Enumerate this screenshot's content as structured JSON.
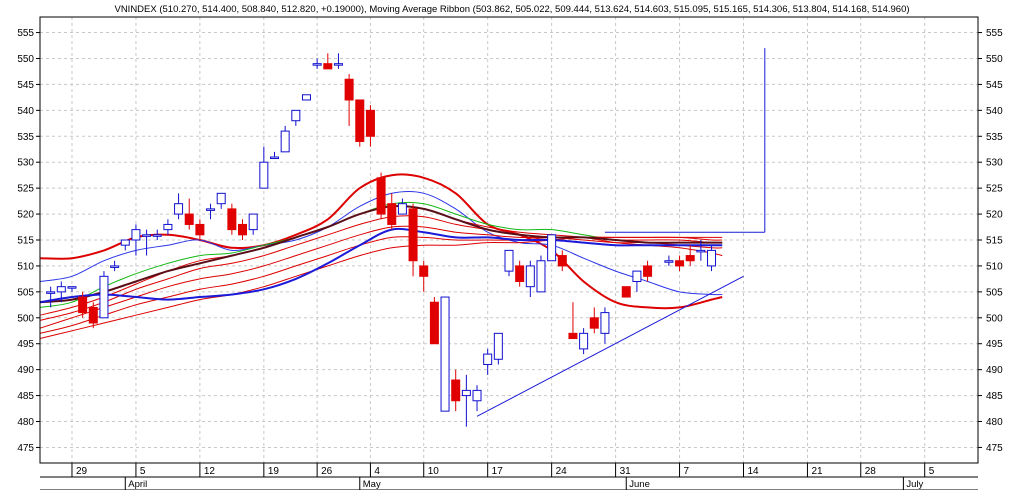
{
  "chart_data": {
    "type": "candlestick",
    "title": "VNINDEX (510.270, 514.400, 508.840, 512.820, +0.19000), Moving Average Ribbon (503.862, 505.022, 509.444, 513.624, 514.603, 515.095, 515.165, 514.306, 513.804, 514.168, 514.960)",
    "ylim": [
      472,
      558
    ],
    "yticks": [
      475,
      480,
      485,
      490,
      495,
      500,
      505,
      510,
      515,
      520,
      525,
      530,
      535,
      540,
      545,
      550,
      555
    ],
    "xlim": [
      -3,
      85
    ],
    "xticks": [
      {
        "label": "29",
        "x": 0
      },
      {
        "label": "5",
        "x": 6
      },
      {
        "label": "12",
        "x": 12
      },
      {
        "label": "19",
        "x": 18
      },
      {
        "label": "26",
        "x": 23
      },
      {
        "label": "4",
        "x": 28
      },
      {
        "label": "10",
        "x": 33
      },
      {
        "label": "17",
        "x": 39
      },
      {
        "label": "24",
        "x": 45
      },
      {
        "label": "31",
        "x": 51
      },
      {
        "label": "7",
        "x": 57
      },
      {
        "label": "14",
        "x": 63
      },
      {
        "label": "21",
        "x": 69
      },
      {
        "label": "28",
        "x": 74
      },
      {
        "label": "5",
        "x": 80
      }
    ],
    "months": [
      {
        "label": "April",
        "x": 5
      },
      {
        "label": "May",
        "x": 27
      },
      {
        "label": "June",
        "x": 52
      },
      {
        "label": "July",
        "x": 78
      }
    ],
    "candles": [
      {
        "x": -2,
        "open": 505,
        "high": 506,
        "low": 502,
        "close": 505
      },
      {
        "x": -1,
        "open": 505,
        "high": 507,
        "low": 503,
        "close": 506
      },
      {
        "x": 0,
        "open": 506,
        "high": 506,
        "low": 505,
        "close": 506
      },
      {
        "x": 1,
        "open": 504,
        "high": 505,
        "low": 500,
        "close": 501
      },
      {
        "x": 2,
        "open": 502,
        "high": 503,
        "low": 498,
        "close": 499
      },
      {
        "x": 3,
        "open": 500,
        "high": 509,
        "low": 500,
        "close": 508
      },
      {
        "x": 4,
        "open": 510,
        "high": 511,
        "low": 509,
        "close": 510
      },
      {
        "x": 5,
        "open": 514,
        "high": 515,
        "low": 513,
        "close": 515
      },
      {
        "x": 6,
        "open": 515,
        "high": 518,
        "low": 512,
        "close": 517
      },
      {
        "x": 7,
        "open": 516,
        "high": 517,
        "low": 512,
        "close": 516
      },
      {
        "x": 8,
        "open": 516,
        "high": 517,
        "low": 515,
        "close": 516
      },
      {
        "x": 9,
        "open": 517,
        "high": 519,
        "low": 516,
        "close": 518
      },
      {
        "x": 10,
        "open": 520,
        "high": 524,
        "low": 519,
        "close": 522
      },
      {
        "x": 11,
        "open": 520,
        "high": 523,
        "low": 517,
        "close": 518
      },
      {
        "x": 12,
        "open": 518,
        "high": 519,
        "low": 515,
        "close": 516
      },
      {
        "x": 13,
        "open": 521,
        "high": 522,
        "low": 519,
        "close": 521
      },
      {
        "x": 14,
        "open": 522,
        "high": 524,
        "low": 521,
        "close": 524
      },
      {
        "x": 15,
        "open": 521,
        "high": 522,
        "low": 516,
        "close": 517
      },
      {
        "x": 16,
        "open": 518,
        "high": 519,
        "low": 515,
        "close": 516
      },
      {
        "x": 17,
        "open": 517,
        "high": 520,
        "low": 516,
        "close": 520
      },
      {
        "x": 18,
        "open": 525,
        "high": 533,
        "low": 525,
        "close": 530
      },
      {
        "x": 19,
        "open": 531,
        "high": 532,
        "low": 531,
        "close": 531
      },
      {
        "x": 20,
        "open": 532,
        "high": 537,
        "low": 532,
        "close": 536
      },
      {
        "x": 21,
        "open": 538,
        "high": 540,
        "low": 537,
        "close": 540
      },
      {
        "x": 22,
        "open": 542,
        "high": 543,
        "low": 542,
        "close": 543
      },
      {
        "x": 23,
        "open": 549,
        "high": 550,
        "low": 548,
        "close": 549
      },
      {
        "x": 24,
        "open": 549,
        "high": 551,
        "low": 548,
        "close": 548
      },
      {
        "x": 25,
        "open": 549,
        "high": 551,
        "low": 548,
        "close": 549
      },
      {
        "x": 26,
        "open": 546,
        "high": 547,
        "low": 537,
        "close": 542
      },
      {
        "x": 27,
        "open": 542,
        "high": 542,
        "low": 533,
        "close": 534
      },
      {
        "x": 28,
        "open": 540,
        "high": 541,
        "low": 533,
        "close": 535
      },
      {
        "x": 29,
        "open": 527,
        "high": 528,
        "low": 519,
        "close": 520
      },
      {
        "x": 30,
        "open": 522,
        "high": 524,
        "low": 517,
        "close": 518
      },
      {
        "x": 31,
        "open": 520,
        "high": 523,
        "low": 520,
        "close": 522
      },
      {
        "x": 32,
        "open": 521,
        "high": 522,
        "low": 508,
        "close": 511
      },
      {
        "x": 33,
        "open": 510,
        "high": 511,
        "low": 505,
        "close": 508
      },
      {
        "x": 34,
        "open": 503,
        "high": 504,
        "low": 495,
        "close": 495
      },
      {
        "x": 35,
        "open": 482,
        "high": 504,
        "low": 482,
        "close": 504
      },
      {
        "x": 36,
        "open": 488,
        "high": 490,
        "low": 482,
        "close": 484
      },
      {
        "x": 37,
        "open": 485,
        "high": 489,
        "low": 479,
        "close": 486
      },
      {
        "x": 38,
        "open": 484,
        "high": 487,
        "low": 482,
        "close": 486
      },
      {
        "x": 39,
        "open": 491,
        "high": 494,
        "low": 489,
        "close": 493
      },
      {
        "x": 40,
        "open": 492,
        "high": 497,
        "low": 491,
        "close": 497
      },
      {
        "x": 41,
        "open": 509,
        "high": 513,
        "low": 508,
        "close": 513
      },
      {
        "x": 42,
        "open": 510,
        "high": 511,
        "low": 506,
        "close": 507
      },
      {
        "x": 43,
        "open": 506,
        "high": 511,
        "low": 504,
        "close": 510
      },
      {
        "x": 44,
        "open": 505,
        "high": 512,
        "low": 505,
        "close": 511
      },
      {
        "x": 45,
        "open": 511,
        "high": 516,
        "low": 511,
        "close": 516
      },
      {
        "x": 46,
        "open": 512,
        "high": 513,
        "low": 509,
        "close": 510
      },
      {
        "x": 47,
        "open": 497,
        "high": 503,
        "low": 496,
        "close": 496
      },
      {
        "x": 48,
        "open": 494,
        "high": 498,
        "low": 493,
        "close": 497
      },
      {
        "x": 49,
        "open": 500,
        "high": 502,
        "low": 497,
        "close": 498
      },
      {
        "x": 50,
        "open": 497,
        "high": 502,
        "low": 495,
        "close": 501
      },
      {
        "x": 52,
        "open": 506,
        "high": 506,
        "low": 504,
        "close": 504
      },
      {
        "x": 53,
        "open": 507,
        "high": 509,
        "low": 505,
        "close": 509
      },
      {
        "x": 54,
        "open": 510,
        "high": 511,
        "low": 507,
        "close": 508
      },
      {
        "x": 56,
        "open": 511,
        "high": 512,
        "low": 510,
        "close": 511
      },
      {
        "x": 57,
        "open": 511,
        "high": 512,
        "low": 509,
        "close": 510
      },
      {
        "x": 58,
        "open": 512,
        "high": 514,
        "low": 510,
        "close": 511
      },
      {
        "x": 59,
        "open": 513,
        "high": 515,
        "low": 511,
        "close": 513
      },
      {
        "x": 60,
        "open": 510,
        "high": 514,
        "low": 509,
        "close": 513
      }
    ],
    "ribbon": {
      "x": [
        -3,
        0,
        3,
        6,
        9,
        12,
        15,
        18,
        21,
        24,
        27,
        30,
        33,
        36,
        39,
        42,
        45,
        48,
        51,
        54,
        57,
        60,
        61
      ],
      "series": [
        {
          "name": "MA fast",
          "color": "#dd0000",
          "width": 2,
          "values": [
            511.5,
            511.5,
            513,
            515.5,
            516,
            515,
            513.5,
            514,
            516,
            519,
            525,
            527.5,
            527,
            524,
            518,
            516,
            513,
            507,
            503,
            502,
            502,
            503.5,
            504
          ]
        },
        {
          "name": "MA blue",
          "color": "#2b36e8",
          "width": 1,
          "values": [
            507,
            508,
            511,
            513,
            514,
            515,
            513,
            514,
            515,
            517.5,
            521.5,
            524,
            524,
            521,
            516.5,
            514.5,
            514,
            511.5,
            509,
            507,
            505,
            504.5,
            504.5
          ]
        },
        {
          "name": "MA green",
          "color": "#14b814",
          "width": 1,
          "values": [
            502,
            503,
            506,
            508.5,
            510.5,
            512,
            512.5,
            514,
            515.5,
            517.5,
            520,
            522,
            522,
            520,
            518,
            517,
            517,
            516,
            515,
            514.5,
            514.5,
            514.5,
            514.5
          ]
        },
        {
          "name": "MA ribbon 1",
          "color": "#dd0000",
          "width": 1,
          "values": [
            500.5,
            502,
            504,
            506.5,
            509,
            511,
            512,
            513.5,
            515.5,
            517.5,
            520,
            521.5,
            521,
            519,
            517.5,
            516.5,
            516,
            515.5,
            514.5,
            514,
            513.5,
            512.5,
            512
          ]
        },
        {
          "name": "MA ribbon 2",
          "color": "#dd0000",
          "width": 1,
          "values": [
            499.5,
            501,
            503,
            505.5,
            507.5,
            509.5,
            510.5,
            512,
            514,
            516,
            518,
            519.5,
            519.5,
            518,
            517,
            516,
            515.5,
            515,
            514.5,
            514.5,
            514,
            513.5,
            513.5
          ]
        },
        {
          "name": "MA ribbon 3",
          "color": "#dd0000",
          "width": 1,
          "values": [
            498,
            500,
            502,
            504,
            506,
            507.5,
            508.5,
            510,
            512,
            514,
            516,
            517.5,
            517.5,
            516.5,
            516,
            515.5,
            515.5,
            515.5,
            515,
            515,
            515,
            514.5,
            514.5
          ]
        },
        {
          "name": "MA ribbon 4",
          "color": "#dd0000",
          "width": 1,
          "values": [
            497,
            498.5,
            500.5,
            502.5,
            504,
            505.5,
            506.5,
            508,
            510,
            512,
            514,
            515.5,
            515.5,
            515,
            515,
            515,
            515.5,
            515.5,
            515.5,
            515.5,
            515.5,
            515,
            515
          ]
        },
        {
          "name": "MA ribbon 5",
          "color": "#dd0000",
          "width": 1,
          "values": [
            496,
            497.5,
            499,
            500.5,
            502,
            503.5,
            504.5,
            506,
            508,
            510,
            512,
            513.5,
            514,
            514,
            514.5,
            514.5,
            515,
            515.5,
            515.5,
            515.5,
            515.5,
            515.5,
            515.5
          ]
        },
        {
          "name": "MA dark",
          "color": "#5a0e18",
          "width": 2,
          "values": [
            503,
            503.5,
            505,
            507,
            509,
            510.5,
            512,
            513.5,
            515.5,
            517.5,
            520,
            521.5,
            521,
            519,
            517,
            516,
            515.5,
            515.5,
            515,
            514.5,
            514.5,
            514.5,
            514.5
          ]
        },
        {
          "name": "MA slow",
          "color": "#1a1ad8",
          "width": 2,
          "values": [
            503,
            504,
            504.5,
            504,
            503.5,
            504,
            504.5,
            505.5,
            507.5,
            510.5,
            514,
            517,
            516.5,
            515.5,
            515.5,
            515,
            515,
            514.5,
            514,
            514,
            514,
            514,
            514
          ]
        }
      ]
    },
    "trendlines": [
      {
        "color": "#1a1ad8",
        "from": [
          38,
          481
        ],
        "to": [
          63,
          508
        ]
      },
      {
        "color": "#1a1ad8",
        "from": [
          50,
          516.5
        ],
        "to": [
          65,
          516.5
        ]
      },
      {
        "color": "#1a1ad8",
        "from": [
          65,
          516.5
        ],
        "to": [
          65,
          552
        ]
      }
    ]
  }
}
